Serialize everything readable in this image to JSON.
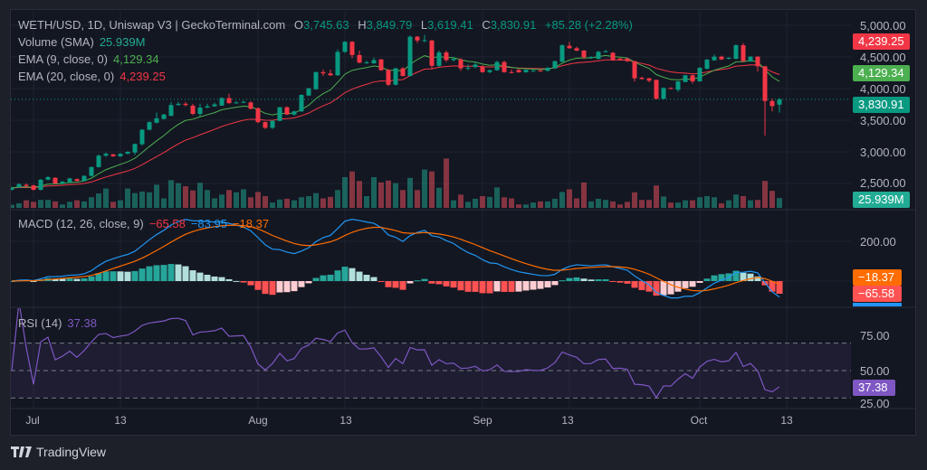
{
  "header": {
    "title": "WETH/USD, 1D, Uniswap V3 | GeckoTerminal.com",
    "o_label": "O",
    "o": "3,745.63",
    "h_label": "H",
    "h": "3,849.79",
    "l_label": "L",
    "l": "3,619.41",
    "c_label": "C",
    "c": "3,830.91",
    "change": "+85.28 (+2.28%)"
  },
  "legends": {
    "volume_label": "Volume (SMA)",
    "volume_value": "25.939M",
    "ema9_label": "EMA (9, close, 0)",
    "ema9_value": "4,129.34",
    "ema20_label": "EMA (20, close, 0)",
    "ema20_value": "4,239.25",
    "macd_label": "MACD (12, 26, close, 9)",
    "macd_hist_value": "−65.58",
    "macd_value": "−83.95",
    "macd_signal_value": "−18.37",
    "rsi_label": "RSI (14)",
    "rsi_value": "37.38"
  },
  "price_axis": [
    "5,000.00",
    "4,500.00",
    "4,000.00",
    "3,500.00",
    "3,000.00",
    "2,500.00"
  ],
  "macd_axis": [
    "200.00"
  ],
  "rsi_axis": [
    "75.00",
    "50.00",
    "25.00"
  ],
  "tags": {
    "ema20": "4,239.25",
    "ema9": "4,129.34",
    "last_price": "3,830.91",
    "volume": "25.939M",
    "macd_signal": "−18.37",
    "macd_hist": "−65.58",
    "rsi": "37.38"
  },
  "time_axis": [
    "Jul",
    "13",
    "Aug",
    "13",
    "Sep",
    "13",
    "Oct",
    "13"
  ],
  "branding": {
    "name": "TradingView"
  },
  "colors": {
    "up": "#089981",
    "down": "#f23645",
    "ema9": "#4caf50",
    "ema20": "#f23645",
    "macd": "#2196f3",
    "signal": "#ff6d00",
    "rsi": "#7e57c2",
    "hist_up_strong": "#26a69a",
    "hist_up_weak": "#b2dfdb",
    "hist_down_strong": "#ff5252",
    "hist_down_weak": "#ffcdd2"
  },
  "chart_data": {
    "type": "candlestick",
    "symbol": "WETH/USD",
    "interval": "1D",
    "ylim": [
      2200,
      5150
    ],
    "grid": true,
    "x_ticks": [
      "Jul",
      "13",
      "Aug",
      "13",
      "Sep",
      "13",
      "Oct",
      "13"
    ],
    "y_ticks": [
      2500,
      3000,
      3500,
      4000,
      4500,
      5000
    ],
    "candles_ohlc": [
      [
        2400,
        2450,
        2390,
        2430
      ],
      [
        2440,
        2500,
        2430,
        2490
      ],
      [
        2480,
        2500,
        2440,
        2460
      ],
      [
        2470,
        2480,
        2390,
        2400
      ],
      [
        2400,
        2570,
        2390,
        2560
      ],
      [
        2560,
        2620,
        2550,
        2600
      ],
      [
        2590,
        2600,
        2490,
        2500
      ],
      [
        2500,
        2540,
        2490,
        2530
      ],
      [
        2520,
        2590,
        2510,
        2580
      ],
      [
        2570,
        2580,
        2530,
        2540
      ],
      [
        2540,
        2630,
        2530,
        2620
      ],
      [
        2620,
        2770,
        2610,
        2760
      ],
      [
        2760,
        2960,
        2750,
        2940
      ],
      [
        2940,
        2990,
        2920,
        2970
      ],
      [
        2960,
        2970,
        2920,
        2930
      ],
      [
        2930,
        2980,
        2920,
        2970
      ],
      [
        2970,
        3010,
        2960,
        3000
      ],
      [
        2990,
        3130,
        2950,
        3125
      ],
      [
        3120,
        3360,
        3100,
        3350
      ],
      [
        3350,
        3480,
        3340,
        3470
      ],
      [
        3460,
        3620,
        3450,
        3530
      ],
      [
        3520,
        3600,
        3510,
        3590
      ],
      [
        3570,
        3790,
        3560,
        3740
      ],
      [
        3740,
        3790,
        3730,
        3760
      ],
      [
        3760,
        3790,
        3720,
        3740
      ],
      [
        3730,
        3760,
        3580,
        3600
      ],
      [
        3600,
        3760,
        3560,
        3700
      ],
      [
        3700,
        3760,
        3690,
        3720
      ],
      [
        3720,
        3780,
        3710,
        3750
      ],
      [
        3730,
        3860,
        3730,
        3850
      ],
      [
        3850,
        3920,
        3760,
        3770
      ],
      [
        3770,
        3800,
        3760,
        3780
      ],
      [
        3780,
        3810,
        3770,
        3790
      ],
      [
        3780,
        3800,
        3670,
        3680
      ],
      [
        3690,
        3700,
        3450,
        3470
      ],
      [
        3470,
        3480,
        3360,
        3380
      ],
      [
        3380,
        3500,
        3360,
        3490
      ],
      [
        3490,
        3710,
        3480,
        3705
      ],
      [
        3705,
        3720,
        3580,
        3590
      ],
      [
        3590,
        3650,
        3570,
        3640
      ],
      [
        3640,
        3910,
        3630,
        3900
      ],
      [
        3890,
        4010,
        3880,
        4005
      ],
      [
        3990,
        4270,
        3980,
        4260
      ],
      [
        4260,
        4300,
        4200,
        4240
      ],
      [
        4240,
        4300,
        4200,
        4210
      ],
      [
        4210,
        4620,
        4200,
        4580
      ],
      [
        4580,
        4750,
        4560,
        4740
      ],
      [
        4740,
        4750,
        4480,
        4530
      ],
      [
        4530,
        4600,
        4400,
        4410
      ],
      [
        4410,
        4440,
        4390,
        4415
      ],
      [
        4400,
        4490,
        4390,
        4450
      ],
      [
        4460,
        4470,
        4280,
        4290
      ],
      [
        4295,
        4310,
        4040,
        4060
      ],
      [
        4060,
        4330,
        4050,
        4320
      ],
      [
        4320,
        4340,
        4190,
        4200
      ],
      [
        4200,
        4840,
        4190,
        4820
      ],
      [
        4820,
        4830,
        4720,
        4760
      ],
      [
        4760,
        4850,
        4730,
        4765
      ],
      [
        4760,
        4770,
        4300,
        4360
      ],
      [
        4360,
        4600,
        4340,
        4570
      ],
      [
        4570,
        4600,
        4420,
        4450
      ],
      [
        4450,
        4500,
        4430,
        4470
      ],
      [
        4460,
        4480,
        4280,
        4320
      ],
      [
        4320,
        4380,
        4290,
        4330
      ],
      [
        4340,
        4420,
        4320,
        4380
      ],
      [
        4350,
        4370,
        4250,
        4260
      ],
      [
        4260,
        4300,
        4240,
        4290
      ],
      [
        4290,
        4440,
        4280,
        4420
      ],
      [
        4420,
        4440,
        4250,
        4260
      ],
      [
        4260,
        4300,
        4240,
        4255
      ],
      [
        4295,
        4310,
        4250,
        4257
      ],
      [
        4257,
        4300,
        4250,
        4295
      ],
      [
        4280,
        4300,
        4270,
        4282
      ],
      [
        4282,
        4300,
        4270,
        4280
      ],
      [
        4281,
        4340,
        4270,
        4328
      ],
      [
        4319,
        4440,
        4310,
        4433
      ],
      [
        4424,
        4700,
        4420,
        4685
      ],
      [
        4676,
        4740,
        4630,
        4638
      ],
      [
        4638,
        4660,
        4590,
        4600
      ],
      [
        4600,
        4610,
        4470,
        4495
      ],
      [
        4495,
        4510,
        4470,
        4500
      ],
      [
        4471,
        4600,
        4460,
        4581
      ],
      [
        4590,
        4610,
        4570,
        4590
      ],
      [
        4566,
        4580,
        4440,
        4447
      ],
      [
        4476,
        4480,
        4440,
        4450
      ],
      [
        4476,
        4480,
        4420,
        4433
      ],
      [
        4433,
        4440,
        4110,
        4162
      ],
      [
        4171,
        4190,
        4140,
        4152
      ],
      [
        4162,
        4170,
        4100,
        4124
      ],
      [
        4138,
        4140,
        3830,
        3838
      ],
      [
        3838,
        4020,
        3830,
        4009
      ],
      [
        4009,
        4020,
        3990,
        4004
      ],
      [
        3981,
        4120,
        3950,
        4114
      ],
      [
        4104,
        4220,
        4100,
        4209
      ],
      [
        4209,
        4220,
        4080,
        4114
      ],
      [
        4114,
        4340,
        4110,
        4328
      ],
      [
        4314,
        4470,
        4300,
        4457
      ],
      [
        4447,
        4540,
        4440,
        4505
      ],
      [
        4505,
        4520,
        4450,
        4462
      ],
      [
        4471,
        4500,
        4460,
        4486
      ],
      [
        4471,
        4700,
        4460,
        4685
      ],
      [
        4685,
        4720,
        4420,
        4433
      ],
      [
        4433,
        4510,
        4420,
        4505
      ],
      [
        4505,
        4510,
        4270,
        4352
      ],
      [
        4352,
        4360,
        3257,
        3804
      ],
      [
        3804,
        3840,
        3640,
        3723
      ],
      [
        3745.63,
        3849.79,
        3619.41,
        3830.91
      ]
    ],
    "volume_millions": [
      8,
      12,
      20,
      16,
      21,
      21,
      17,
      9,
      16,
      20,
      17,
      28,
      38,
      51,
      16,
      20,
      51,
      39,
      43,
      41,
      61,
      25,
      73,
      65,
      57,
      46,
      66,
      47,
      25,
      35,
      47,
      41,
      49,
      28,
      42,
      31,
      14,
      22,
      24,
      20,
      28,
      31,
      39,
      25,
      29,
      47,
      81,
      96,
      71,
      31,
      81,
      67,
      72,
      65,
      47,
      79,
      47,
      101,
      96,
      53,
      130,
      20,
      35,
      16,
      24,
      31,
      29,
      54,
      28,
      25,
      9,
      9,
      14,
      17,
      17,
      24,
      42,
      49,
      25,
      67,
      17,
      24,
      21,
      17,
      9,
      16,
      41,
      21,
      21,
      59,
      30,
      14,
      14,
      20,
      20,
      28,
      31,
      28,
      12,
      20,
      35,
      31,
      20,
      21,
      71,
      45,
      26
    ],
    "indicators": {
      "ema_fast_length": 9,
      "ema_slow_length": 20,
      "macd": {
        "fast": 12,
        "slow": 26,
        "signal": 9,
        "last_hist": -65.58,
        "last_macd": -83.95,
        "last_signal": -18.37,
        "y_ticks": [
          200
        ]
      },
      "rsi": {
        "length": 14,
        "last": 37.38,
        "upper_band": 70,
        "middle": 50,
        "lower_band": 30,
        "y_ticks": [
          75,
          50,
          25
        ]
      }
    },
    "last_price": 3830.91
  }
}
